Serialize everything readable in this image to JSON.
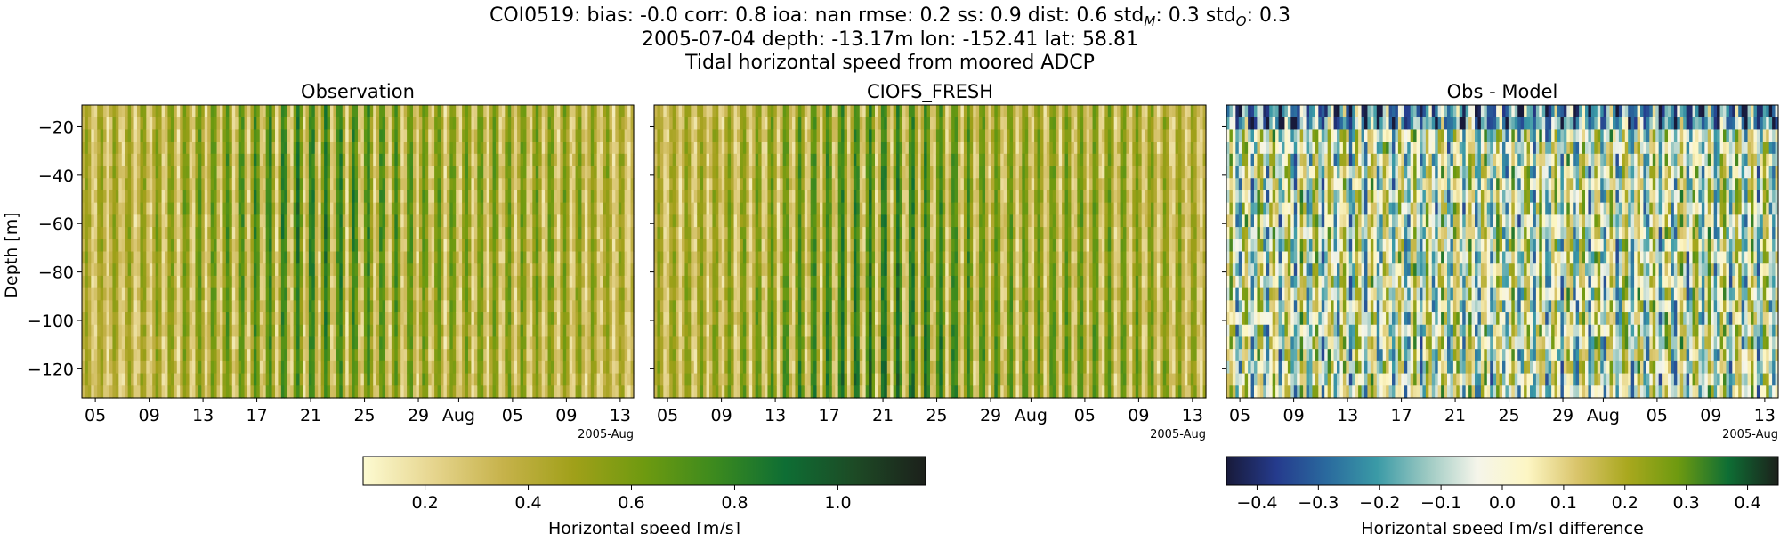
{
  "header": {
    "line1_prefix": "COI0519: bias: -0.0  corr: 0.8  ioa: nan  rmse: 0.2  ss: 0.9  dist: 0.6  std",
    "line1_sub_m": "M",
    "line1_mid": ": 0.3  std",
    "line1_sub_o": "O",
    "line1_suffix": ": 0.3",
    "line2": "2005-07-04 depth: -13.17m lon: -152.41 lat: 58.81",
    "line3": "Tidal horizontal speed from moored ADCP"
  },
  "chart_data": [
    {
      "type": "heatmap",
      "title": "Observation",
      "ylabel": "Depth [m]",
      "xlabel": "",
      "x_ticks": [
        "05",
        "09",
        "13",
        "17",
        "21",
        "25",
        "29",
        "Aug",
        "05",
        "09",
        "13"
      ],
      "x_offset_label": "2005-Aug",
      "y_ticks": [
        -20,
        -40,
        -60,
        -80,
        -100,
        -120
      ],
      "ylim": [
        -132,
        -11
      ],
      "xlim": [
        "2005-07-04",
        "2005-08-14"
      ],
      "colormap": "speed",
      "clim": [
        0.08,
        1.17
      ]
    },
    {
      "type": "heatmap",
      "title": "CIOFS_FRESH",
      "ylabel": "",
      "xlabel": "",
      "x_ticks": [
        "05",
        "09",
        "13",
        "17",
        "21",
        "25",
        "29",
        "Aug",
        "05",
        "09",
        "13"
      ],
      "x_offset_label": "2005-Aug",
      "y_ticks": [
        -20,
        -40,
        -60,
        -80,
        -100,
        -120
      ],
      "ylim": [
        -132,
        -11
      ],
      "xlim": [
        "2005-07-04",
        "2005-08-14"
      ],
      "colormap": "speed",
      "clim": [
        0.08,
        1.17
      ]
    },
    {
      "type": "heatmap",
      "title": "Obs - Model",
      "ylabel": "",
      "xlabel": "",
      "x_ticks": [
        "05",
        "09",
        "13",
        "17",
        "21",
        "25",
        "29",
        "Aug",
        "05",
        "09",
        "13"
      ],
      "x_offset_label": "2005-Aug",
      "y_ticks": [
        -20,
        -40,
        -60,
        -80,
        -100,
        -120
      ],
      "ylim": [
        -132,
        -11
      ],
      "xlim": [
        "2005-07-04",
        "2005-08-14"
      ],
      "colormap": "diff",
      "clim": [
        -0.45,
        0.45
      ]
    }
  ],
  "colorbars": [
    {
      "label": "Horizontal speed [m/s]",
      "ticks": [
        0.2,
        0.4,
        0.6,
        0.8,
        1.0
      ],
      "tick_labels": [
        "0.2",
        "0.4",
        "0.6",
        "0.8",
        "1.0"
      ],
      "range": [
        0.08,
        1.17
      ],
      "colors": [
        "#fdfbd2",
        "#e6d58e",
        "#c6b24a",
        "#a0a019",
        "#6e9a10",
        "#3c8a1e",
        "#0e6e34",
        "#1d4a25",
        "#1c201b"
      ]
    },
    {
      "label": "Horizontal speed [m/s] difference",
      "ticks": [
        -0.4,
        -0.3,
        -0.2,
        -0.1,
        0.0,
        0.1,
        0.2,
        0.3,
        0.4
      ],
      "tick_labels": [
        "−0.4",
        "−0.3",
        "−0.2",
        "−0.1",
        "0.0",
        "0.1",
        "0.2",
        "0.3",
        "0.4"
      ],
      "range": [
        -0.45,
        0.45
      ],
      "colors": [
        "#181a3a",
        "#253b8d",
        "#2a6a9e",
        "#3a9aa6",
        "#9cc9c2",
        "#f5f5ea",
        "#fdf6c4",
        "#d9c46a",
        "#a9a81e",
        "#6e9a10",
        "#0e6e34",
        "#1c201b"
      ]
    }
  ]
}
